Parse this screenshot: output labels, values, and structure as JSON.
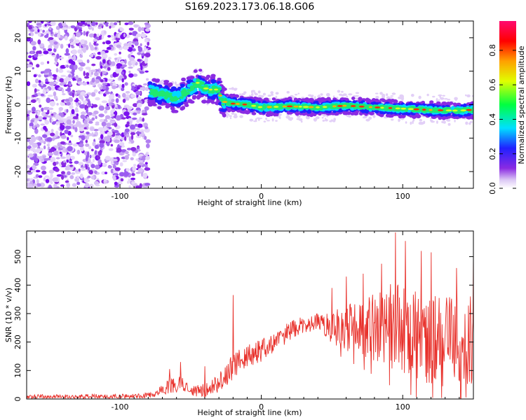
{
  "title": "S169.2023.173.06.18.G06",
  "chart_data": [
    {
      "type": "heatmap",
      "xlabel": "Height of straight line (km)",
      "ylabel": "Frequency (Hz)",
      "xlim": [
        -166,
        150
      ],
      "ylim": [
        -25,
        25
      ],
      "xticks": [
        -100,
        0,
        100
      ],
      "yticks": [
        -20,
        -10,
        0,
        10,
        20
      ],
      "colorbar": {
        "label": "Normalized spectral amplitude",
        "range": [
          0.0,
          0.97
        ],
        "ticks": [
          "0.0",
          "0.2",
          "0.4",
          "0.6",
          "0.8"
        ],
        "colormap": "rainbow",
        "colors": [
          "#ffffff",
          "#dcc8f5",
          "#8a2be2",
          "#2020ff",
          "#00e0ff",
          "#00ff40",
          "#e0ff00",
          "#ffa000",
          "#ff0000",
          "#ff0a70"
        ]
      },
      "noise_region_x": [
        -166,
        -80
      ],
      "signal_track": [
        {
          "x": -80,
          "y": 4
        },
        {
          "x": -70,
          "y": 3
        },
        {
          "x": -60,
          "y": 2
        },
        {
          "x": -52,
          "y": 4
        },
        {
          "x": -45,
          "y": 6.5
        },
        {
          "x": -38,
          "y": 4.5
        },
        {
          "x": -30,
          "y": 4.5
        },
        {
          "x": -28,
          "y": 1
        },
        {
          "x": -20,
          "y": 0.3
        },
        {
          "x": -10,
          "y": 0
        },
        {
          "x": 0,
          "y": -0.8
        },
        {
          "x": 20,
          "y": -0.5
        },
        {
          "x": 40,
          "y": -0.8
        },
        {
          "x": 60,
          "y": -0.3
        },
        {
          "x": 80,
          "y": -0.8
        },
        {
          "x": 100,
          "y": -1.2
        },
        {
          "x": 120,
          "y": -1.6
        },
        {
          "x": 140,
          "y": -1.8
        },
        {
          "x": 150,
          "y": -1.5
        }
      ]
    },
    {
      "type": "line",
      "xlabel": "Height of straight line (km)",
      "ylabel": "SNR (10 * v/v)",
      "xlim": [
        -166,
        150
      ],
      "ylim": [
        0,
        590
      ],
      "xticks": [
        -100,
        0,
        100
      ],
      "yticks": [
        0,
        100,
        200,
        300,
        400,
        500
      ],
      "color": "#e8302a",
      "envelope": [
        {
          "x": -166,
          "base": 8,
          "spread": 8
        },
        {
          "x": -90,
          "base": 10,
          "spread": 8
        },
        {
          "x": -75,
          "base": 15,
          "spread": 10
        },
        {
          "x": -68,
          "base": 40,
          "spread": 25
        },
        {
          "x": -55,
          "base": 55,
          "spread": 30
        },
        {
          "x": -48,
          "base": 25,
          "spread": 20
        },
        {
          "x": -40,
          "base": 30,
          "spread": 25
        },
        {
          "x": -30,
          "base": 60,
          "spread": 35
        },
        {
          "x": -20,
          "base": 110,
          "spread": 50
        },
        {
          "x": -10,
          "base": 150,
          "spread": 40
        },
        {
          "x": 0,
          "base": 170,
          "spread": 40
        },
        {
          "x": 10,
          "base": 200,
          "spread": 35
        },
        {
          "x": 20,
          "base": 240,
          "spread": 35
        },
        {
          "x": 30,
          "base": 260,
          "spread": 30
        },
        {
          "x": 40,
          "base": 270,
          "spread": 30
        },
        {
          "x": 50,
          "base": 250,
          "spread": 60
        },
        {
          "x": 60,
          "base": 250,
          "spread": 80
        },
        {
          "x": 70,
          "base": 250,
          "spread": 100
        },
        {
          "x": 80,
          "base": 250,
          "spread": 120
        },
        {
          "x": 90,
          "base": 260,
          "spread": 150
        },
        {
          "x": 100,
          "base": 250,
          "spread": 160
        },
        {
          "x": 110,
          "base": 230,
          "spread": 160
        },
        {
          "x": 120,
          "base": 210,
          "spread": 160
        },
        {
          "x": 130,
          "base": 200,
          "spread": 160
        },
        {
          "x": 140,
          "base": 200,
          "spread": 160
        },
        {
          "x": 150,
          "base": 200,
          "spread": 170
        }
      ],
      "spikes": [
        {
          "x": -65,
          "y": 105
        },
        {
          "x": -57,
          "y": 130
        },
        {
          "x": -20,
          "y": 365
        },
        {
          "x": -40,
          "y": 115
        },
        {
          "x": 50,
          "y": 390
        },
        {
          "x": 60,
          "y": 430
        },
        {
          "x": 72,
          "y": 440
        },
        {
          "x": 85,
          "y": 475
        },
        {
          "x": 95,
          "y": 585
        },
        {
          "x": 102,
          "y": 555
        },
        {
          "x": 113,
          "y": 520
        },
        {
          "x": 120,
          "y": 515
        },
        {
          "x": 138,
          "y": 460
        },
        {
          "x": 150,
          "y": 505
        }
      ]
    }
  ]
}
